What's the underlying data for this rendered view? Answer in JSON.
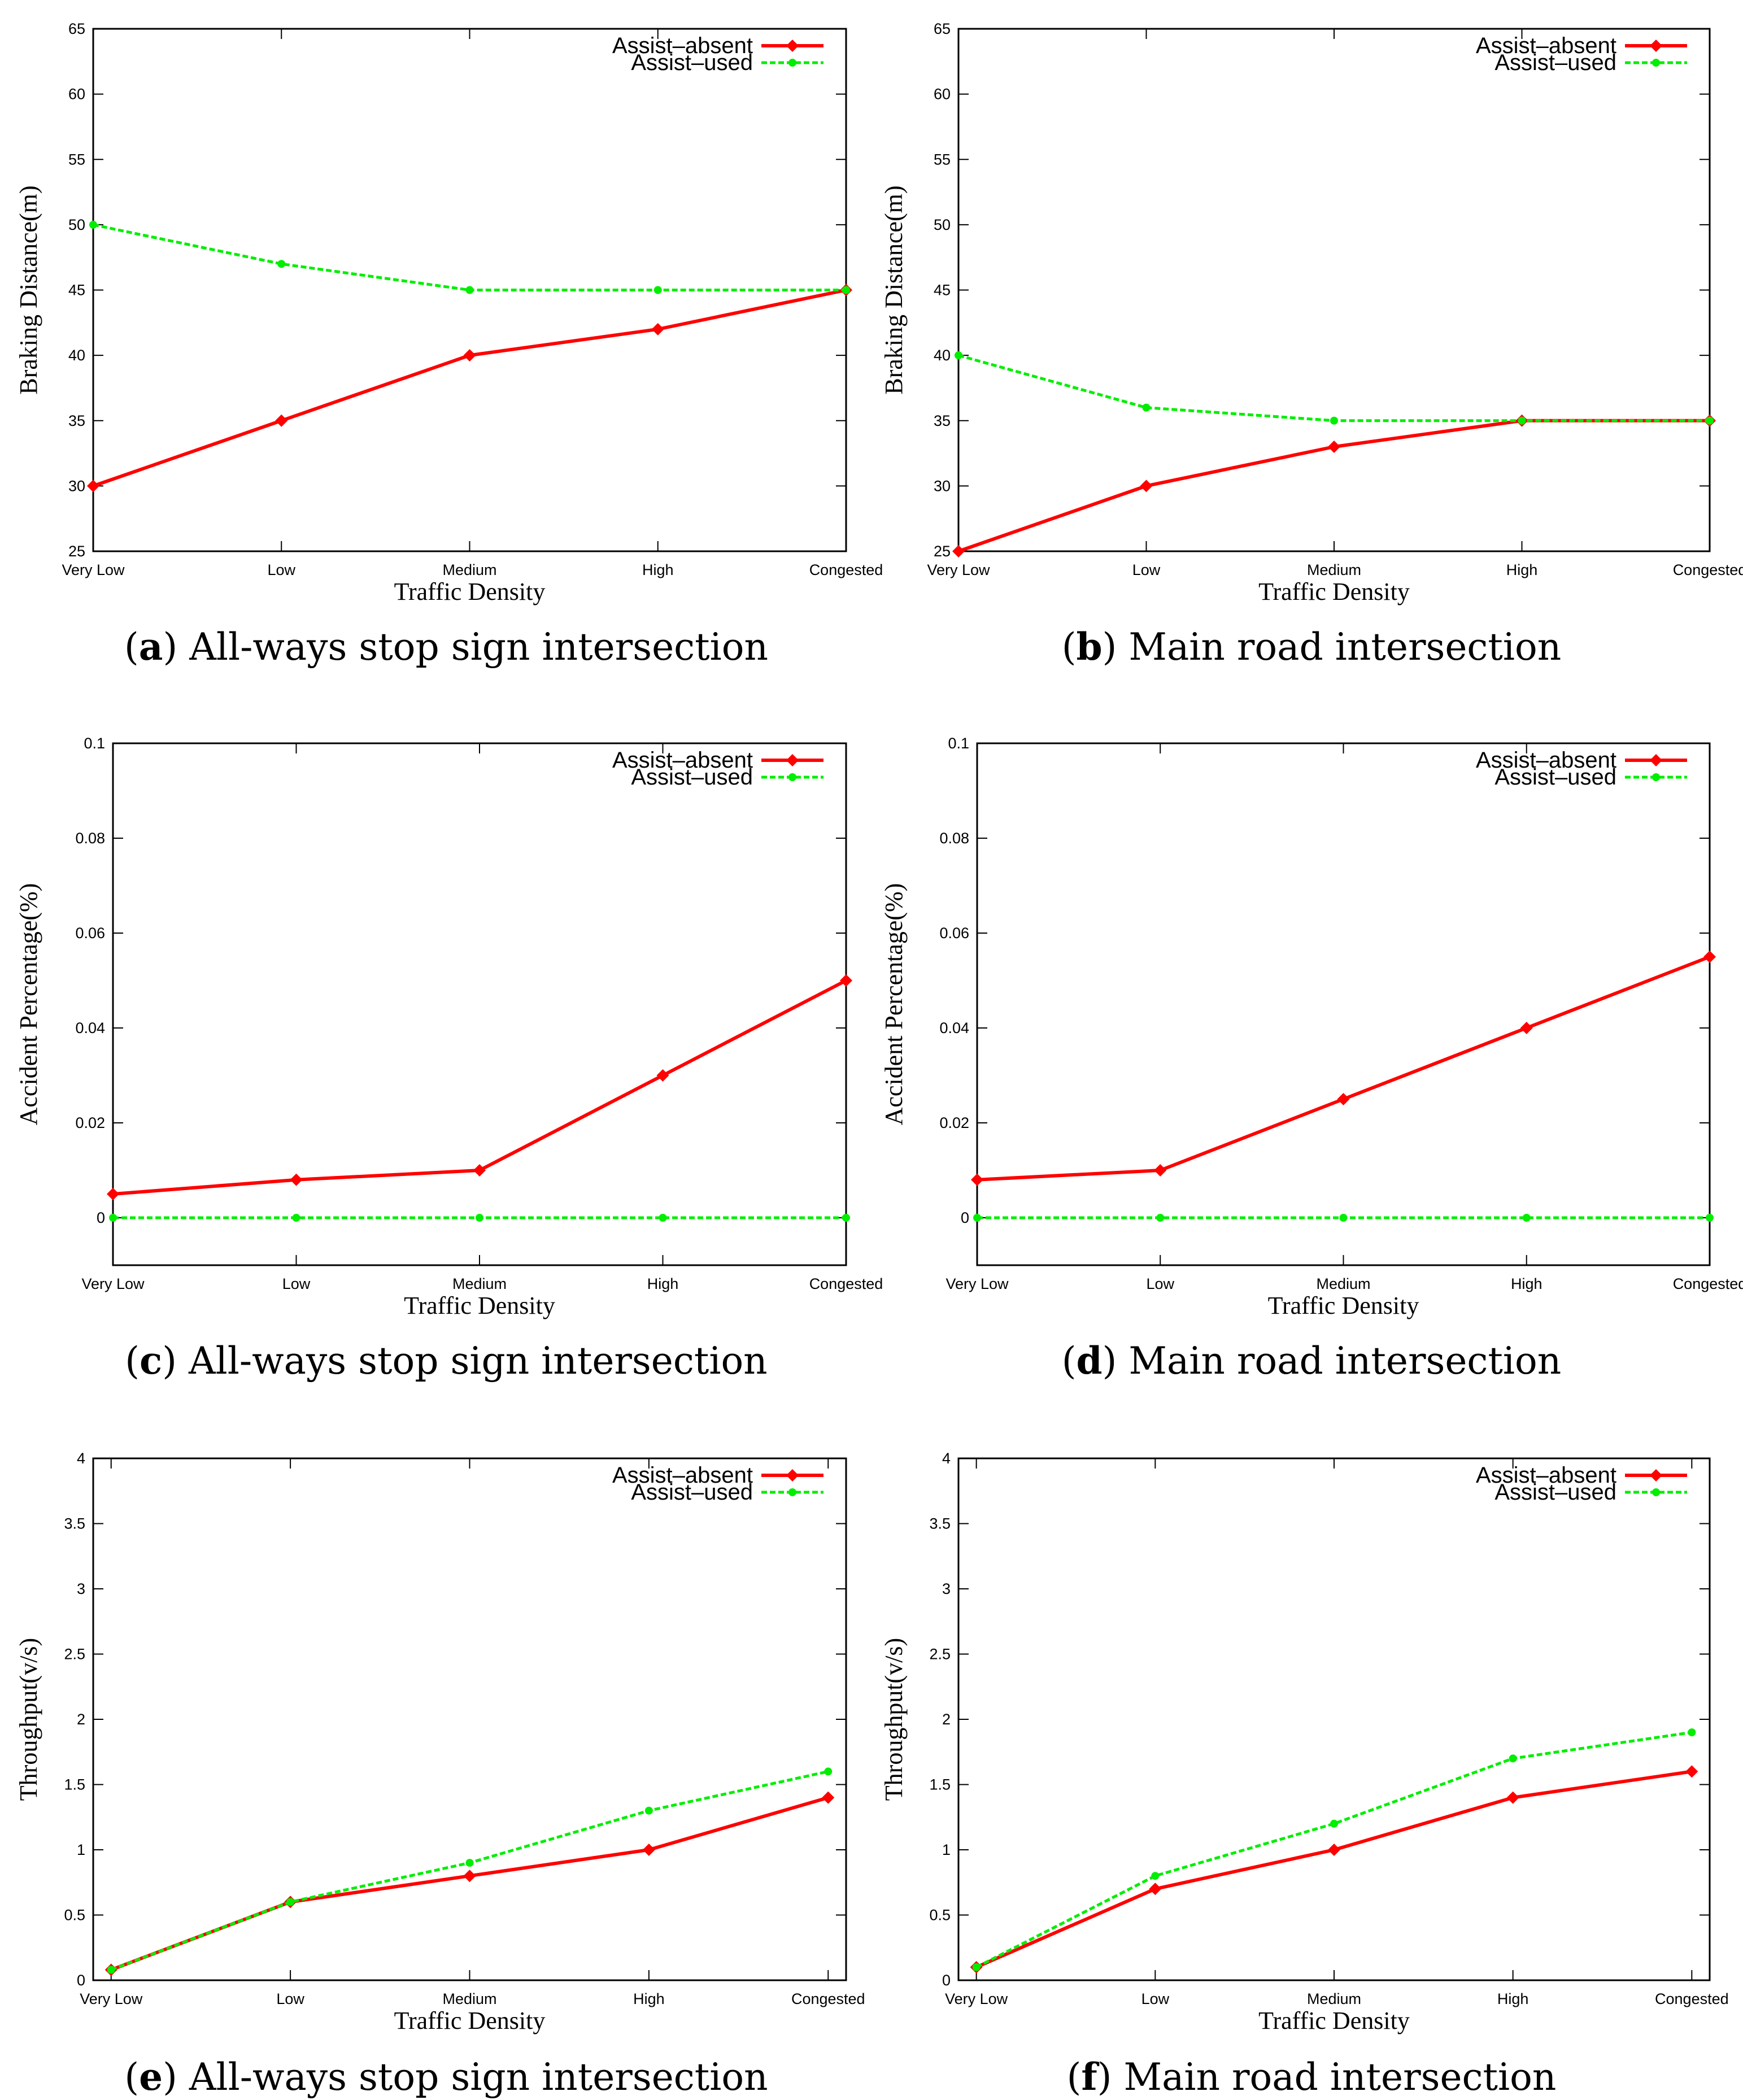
{
  "figure": {
    "colors": {
      "assist_absent": "#ff0000",
      "assist_used": "#00ee00",
      "frame": "#000000"
    }
  },
  "chart_data": [
    {
      "id": "a",
      "type": "line",
      "caption_letter": "a",
      "caption_text": "All-ways stop sign intersection",
      "xlabel": "Traffic Density",
      "ylabel": "Braking Distance(m)",
      "categories": [
        "Very Low",
        "Low",
        "Medium",
        "High",
        "Congested"
      ],
      "ylim": [
        25,
        65
      ],
      "yticks": [
        25,
        30,
        35,
        40,
        45,
        50,
        55,
        60,
        65
      ],
      "ytick_labels": [
        "25",
        "30",
        "35",
        "40",
        "45",
        "50",
        "55",
        "60",
        "65"
      ],
      "xpad": 0,
      "legend_position": "top-right",
      "series": [
        {
          "name": "Assist–absent",
          "values": [
            30,
            35,
            40,
            42,
            45
          ]
        },
        {
          "name": "Assist–used",
          "values": [
            50,
            47,
            45,
            45,
            45
          ]
        }
      ]
    },
    {
      "id": "b",
      "type": "line",
      "caption_letter": "b",
      "caption_text": "Main road intersection",
      "xlabel": "Traffic Density",
      "ylabel": "Braking Distance(m)",
      "categories": [
        "Very Low",
        "Low",
        "Medium",
        "High",
        "Congested"
      ],
      "ylim": [
        25,
        65
      ],
      "yticks": [
        25,
        30,
        35,
        40,
        45,
        50,
        55,
        60,
        65
      ],
      "ytick_labels": [
        "25",
        "30",
        "35",
        "40",
        "45",
        "50",
        "55",
        "60",
        "65"
      ],
      "xpad": 0,
      "legend_position": "top-right",
      "series": [
        {
          "name": "Assist–absent",
          "values": [
            25,
            30,
            33,
            35,
            35
          ]
        },
        {
          "name": "Assist–used",
          "values": [
            40,
            36,
            35,
            35,
            35
          ]
        }
      ]
    },
    {
      "id": "c",
      "type": "line",
      "caption_letter": "c",
      "caption_text": "All-ways stop sign intersection",
      "xlabel": "Traffic Density",
      "ylabel": "Accident Percentage(%)",
      "categories": [
        "Very Low",
        "Low",
        "Medium",
        "High",
        "Congested"
      ],
      "ylim": [
        -0.01,
        0.1
      ],
      "yticks": [
        0,
        0.02,
        0.04,
        0.06,
        0.08,
        0.1
      ],
      "ytick_labels": [
        "0",
        "0.02",
        "0.04",
        "0.06",
        "0.08",
        "0.1"
      ],
      "xpad": 0,
      "legend_position": "top-right",
      "series": [
        {
          "name": "Assist–absent",
          "values": [
            0.005,
            0.008,
            0.01,
            0.03,
            0.05
          ]
        },
        {
          "name": "Assist–used",
          "values": [
            0,
            0,
            0,
            0,
            0
          ]
        }
      ]
    },
    {
      "id": "d",
      "type": "line",
      "caption_letter": "d",
      "caption_text": "Main road intersection",
      "xlabel": "Traffic Density",
      "ylabel": "Accident Percentage(%)",
      "categories": [
        "Very Low",
        "Low",
        "Medium",
        "High",
        "Congested"
      ],
      "ylim": [
        -0.01,
        0.1
      ],
      "yticks": [
        0,
        0.02,
        0.04,
        0.06,
        0.08,
        0.1
      ],
      "ytick_labels": [
        "0",
        "0.02",
        "0.04",
        "0.06",
        "0.08",
        "0.1"
      ],
      "xpad": 0,
      "legend_position": "top-right",
      "series": [
        {
          "name": "Assist–absent",
          "values": [
            0.008,
            0.01,
            0.025,
            0.04,
            0.055
          ]
        },
        {
          "name": "Assist–used",
          "values": [
            0,
            0,
            0,
            0,
            0
          ]
        }
      ]
    },
    {
      "id": "e",
      "type": "line",
      "caption_letter": "e",
      "caption_text": "All-ways stop sign intersection",
      "xlabel": "Traffic Density",
      "ylabel": "Throughput(v/s)",
      "categories": [
        "Very Low",
        "Low",
        "Medium",
        "High",
        "Congested"
      ],
      "ylim": [
        0,
        4
      ],
      "yticks": [
        0,
        0.5,
        1,
        1.5,
        2,
        2.5,
        3,
        3.5,
        4
      ],
      "ytick_labels": [
        "0",
        "0.5",
        "1",
        "1.5",
        "2",
        "2.5",
        "3",
        "3.5",
        "4"
      ],
      "xpad": 0.1,
      "legend_position": "top-right",
      "series": [
        {
          "name": "Assist–absent",
          "values": [
            0.08,
            0.6,
            0.8,
            1.0,
            1.4
          ]
        },
        {
          "name": "Assist–used",
          "values": [
            0.08,
            0.6,
            0.9,
            1.3,
            1.6
          ]
        }
      ]
    },
    {
      "id": "f",
      "type": "line",
      "caption_letter": "f",
      "caption_text": "Main road intersection",
      "xlabel": "Traffic Density",
      "ylabel": "Throughput(v/s)",
      "categories": [
        "Very Low",
        "Low",
        "Medium",
        "High",
        "Congested"
      ],
      "ylim": [
        0,
        4
      ],
      "yticks": [
        0,
        0.5,
        1,
        1.5,
        2,
        2.5,
        3,
        3.5,
        4
      ],
      "ytick_labels": [
        "0",
        "0.5",
        "1",
        "1.5",
        "2",
        "2.5",
        "3",
        "3.5",
        "4"
      ],
      "xpad": 0.1,
      "legend_position": "top-right",
      "series": [
        {
          "name": "Assist–absent",
          "values": [
            0.1,
            0.7,
            1.0,
            1.4,
            1.6
          ]
        },
        {
          "name": "Assist–used",
          "values": [
            0.1,
            0.8,
            1.2,
            1.7,
            1.9
          ]
        }
      ]
    }
  ]
}
